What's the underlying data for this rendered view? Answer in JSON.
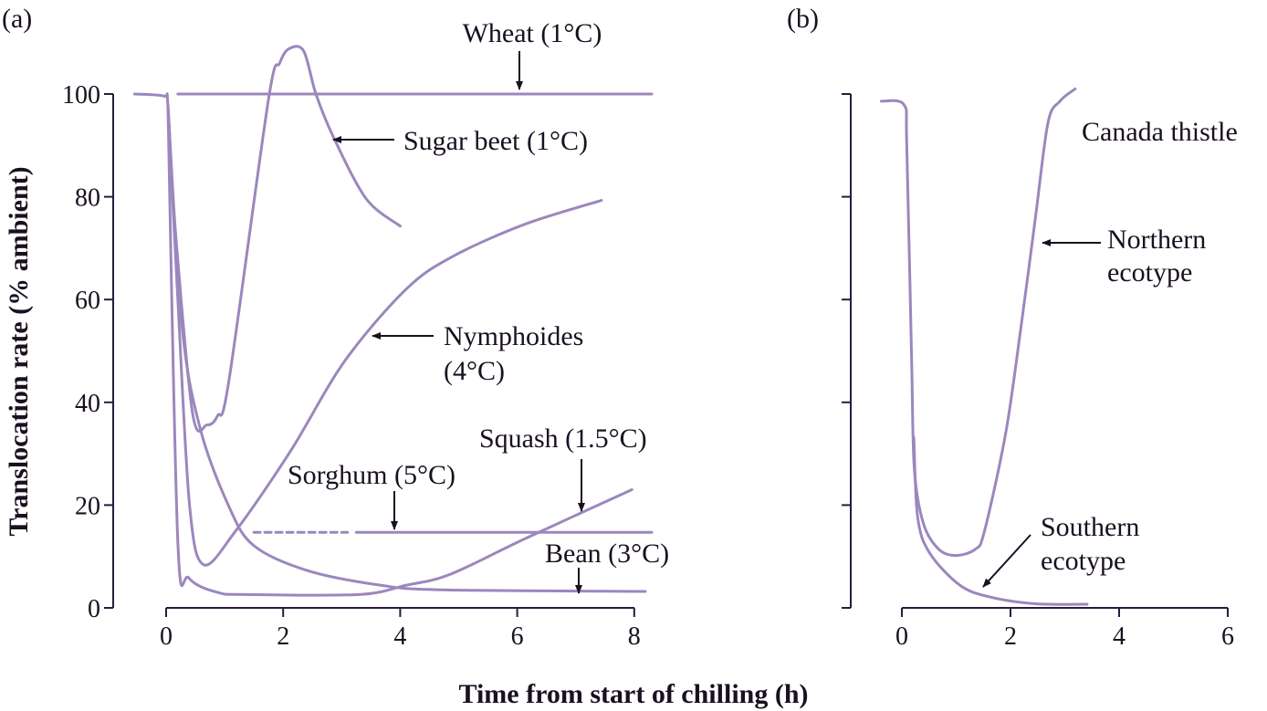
{
  "chart_data": [
    {
      "type": "line",
      "panel_label": "(a)",
      "xlabel": "Time from start of chilling (h)",
      "ylabel": "Translocation rate (% ambient)",
      "xlim": [
        -0.5,
        8.3
      ],
      "ylim": [
        0,
        100
      ],
      "xticks": [
        0,
        2,
        4,
        6,
        8
      ],
      "yticks": [
        0,
        20,
        40,
        60,
        80,
        100
      ],
      "series": [
        {
          "name": "Wheat (1°C)",
          "points": [
            [
              0.2,
              100
            ],
            [
              8.3,
              100
            ]
          ]
        },
        {
          "name": "Sugar beet (1°C)",
          "points": [
            [
              -0.54,
              100
            ],
            [
              -0.04,
              99.6
            ],
            [
              0.03,
              97.9
            ],
            [
              0.14,
              76
            ],
            [
              0.45,
              38
            ],
            [
              0.7,
              35.6
            ],
            [
              0.88,
              37.4
            ],
            [
              1.07,
              44
            ],
            [
              1.75,
              99
            ],
            [
              1.94,
              106
            ],
            [
              2.1,
              108.8
            ],
            [
              2.35,
              108.4
            ],
            [
              2.56,
              100
            ],
            [
              2.86,
              91.6
            ],
            [
              3.42,
              79.6
            ],
            [
              4.0,
              74.3
            ]
          ]
        },
        {
          "name": "Nymphoides (4°C)",
          "points": [
            [
              0.03,
              97.9
            ],
            [
              0.2,
              60
            ],
            [
              0.4,
              20
            ],
            [
              0.64,
              8.4
            ],
            [
              1.19,
              15
            ],
            [
              2.12,
              30.4
            ],
            [
              3.05,
              48
            ],
            [
              4.1,
              62
            ],
            [
              4.9,
              68.4
            ],
            [
              6.14,
              74.7
            ],
            [
              7.44,
              79.3
            ]
          ]
        },
        {
          "name": "Squash (1.5°C)",
          "points": [
            [
              0.03,
              97.9
            ],
            [
              0.2,
              12.8
            ],
            [
              0.39,
              5.8
            ],
            [
              0.88,
              3
            ],
            [
              1.38,
              2.6
            ],
            [
              3.3,
              2.6
            ],
            [
              4.1,
              4.4
            ],
            [
              4.85,
              6.5
            ],
            [
              6.14,
              13.5
            ],
            [
              7.96,
              23
            ]
          ]
        },
        {
          "name": "Bean (3°C)",
          "points": [
            [
              0.03,
              97.9
            ],
            [
              0.27,
              55
            ],
            [
              0.58,
              35
            ],
            [
              1.07,
              19.8
            ],
            [
              1.5,
              12.1
            ],
            [
              2.43,
              7.2
            ],
            [
              3.67,
              4.4
            ],
            [
              4.72,
              3.5
            ],
            [
              8.19,
              3.2
            ]
          ]
        },
        {
          "name": "Sorghum (5°C)",
          "points": [
            [
              3.25,
              14.7
            ],
            [
              8.3,
              14.7
            ]
          ],
          "dashed_segment": [
            [
              1.5,
              14.7
            ],
            [
              3.1,
              14.7
            ]
          ]
        }
      ],
      "annotations": {
        "wheat": "Wheat (1°C)",
        "sugar_beet": "Sugar beet (1°C)",
        "nymphoides_1": "Nymphoides",
        "nymphoides_2": "(4°C)",
        "squash": "Squash (1.5°C)",
        "sorghum": "Sorghum (5°C)",
        "bean": "Bean (3°C)"
      }
    },
    {
      "type": "line",
      "panel_label": "(b)",
      "title": "Canada thistle",
      "xlim": [
        -0.4,
        6
      ],
      "ylim": [
        0,
        100
      ],
      "xticks": [
        0,
        2,
        4,
        6
      ],
      "yticks": [
        0,
        20,
        40,
        60,
        80,
        100
      ],
      "series": [
        {
          "name": "Northern ecotype",
          "points": [
            [
              -0.38,
              98.6
            ],
            [
              0.04,
              97.9
            ],
            [
              0.09,
              90
            ],
            [
              0.18,
              48
            ],
            [
              0.23,
              26.9
            ],
            [
              0.4,
              16.3
            ],
            [
              0.68,
              11.4
            ],
            [
              0.99,
              10.2
            ],
            [
              1.35,
              11.4
            ],
            [
              1.52,
              14.9
            ],
            [
              1.91,
              33.9
            ],
            [
              2.18,
              53.6
            ],
            [
              2.46,
              76
            ],
            [
              2.69,
              94.4
            ],
            [
              2.91,
              98.6
            ],
            [
              3.19,
              101
            ]
          ]
        },
        {
          "name": "Southern ecotype",
          "points": [
            [
              0.22,
              33.2
            ],
            [
              0.29,
              17.7
            ],
            [
              0.51,
              10.7
            ],
            [
              1.07,
              4.4
            ],
            [
              1.63,
              2.1
            ],
            [
              2.46,
              0.8
            ],
            [
              3.41,
              0.7
            ]
          ]
        }
      ],
      "annotations": {
        "northern_1": "Northern",
        "northern_2": "ecotype",
        "southern_1": "Southern",
        "southern_2": "ecotype"
      }
    }
  ],
  "tick_labels": {
    "y": [
      "0",
      "20",
      "40",
      "60",
      "80",
      "100"
    ],
    "xa": [
      "0",
      "2",
      "4",
      "6",
      "8"
    ],
    "xb": [
      "0",
      "2",
      "4",
      "6"
    ]
  }
}
